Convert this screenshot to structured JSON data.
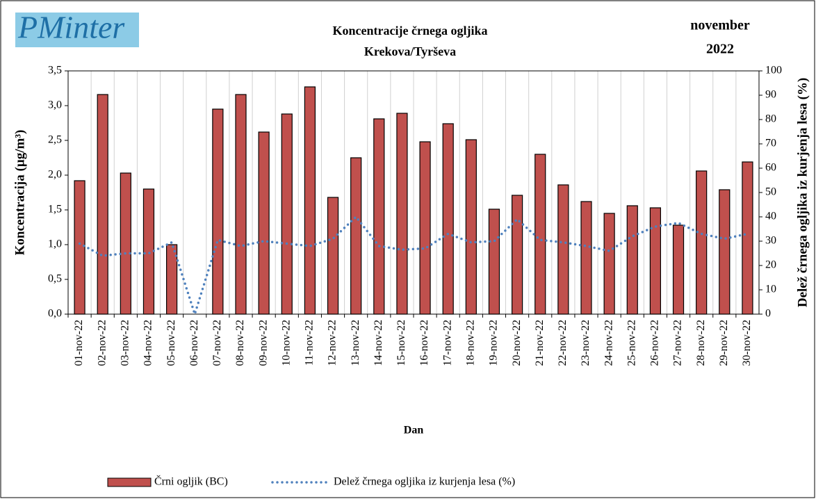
{
  "logo": "PMinter",
  "chart_data": {
    "type": "bar",
    "title": "Koncentracije  črnega ogljika",
    "subtitle": "Krekova/Tyrševa",
    "period": [
      "november",
      "2022"
    ],
    "x_label": "Dan",
    "y_label": "Koncentracija  (µg/m³)",
    "y2_label": "Delež črnega ogljika iz kurjenja lesa (%)",
    "categories": [
      "01-nov-22",
      "02-nov-22",
      "03-nov-22",
      "04-nov-22",
      "05-nov-22",
      "06-nov-22",
      "07-nov-22",
      "08-nov-22",
      "09-nov-22",
      "10-nov-22",
      "11-nov-22",
      "12-nov-22",
      "13-nov-22",
      "14-nov-22",
      "15-nov-22",
      "16-nov-22",
      "17-nov-22",
      "18-nov-22",
      "19-nov-22",
      "20-nov-22",
      "21-nov-22",
      "22-nov-22",
      "23-nov-22",
      "24-nov-22",
      "25-nov-22",
      "26-nov-22",
      "27-nov-22",
      "28-nov-22",
      "29-nov-22",
      "30-nov-22"
    ],
    "series": [
      {
        "name": "Črni ogljik (BC)",
        "type": "bar",
        "color": "#c0504d",
        "values": [
          1.92,
          3.16,
          2.03,
          1.8,
          1.0,
          null,
          2.95,
          3.16,
          2.62,
          2.88,
          3.27,
          1.68,
          2.25,
          2.81,
          2.89,
          2.48,
          2.74,
          2.51,
          1.51,
          1.71,
          2.3,
          1.86,
          1.62,
          1.45,
          1.56,
          1.53,
          1.28,
          2.06,
          1.79,
          2.19
        ]
      },
      {
        "name": "Delež črnega ogljika iz kurjenja lesa (%)",
        "type": "line",
        "axis": "y2",
        "color": "#4f81bd",
        "values": [
          29,
          24,
          25,
          25,
          29.5,
          0,
          30.5,
          28,
          30,
          29,
          28,
          31,
          40,
          28,
          26.5,
          27,
          33,
          29.5,
          30,
          39,
          30.5,
          29.5,
          28,
          26,
          32,
          36,
          37.5,
          33,
          31,
          33
        ]
      }
    ],
    "ylim": [
      0,
      3.5
    ],
    "yticks": [
      {
        "value": 0,
        "label": "0,0"
      },
      {
        "value": 0.5,
        "label": "0,5"
      },
      {
        "value": 1,
        "label": "1,0"
      },
      {
        "value": 1.5,
        "label": "1,5"
      },
      {
        "value": 2,
        "label": "2,0"
      },
      {
        "value": 2.5,
        "label": "2,5"
      },
      {
        "value": 3,
        "label": "3,0"
      },
      {
        "value": 3.5,
        "label": "3,5"
      }
    ],
    "y2lim": [
      0,
      100
    ],
    "y2ticks": [
      0,
      10,
      20,
      30,
      40,
      50,
      60,
      70,
      80,
      90,
      100
    ],
    "grid": true,
    "legend": "bottom"
  }
}
